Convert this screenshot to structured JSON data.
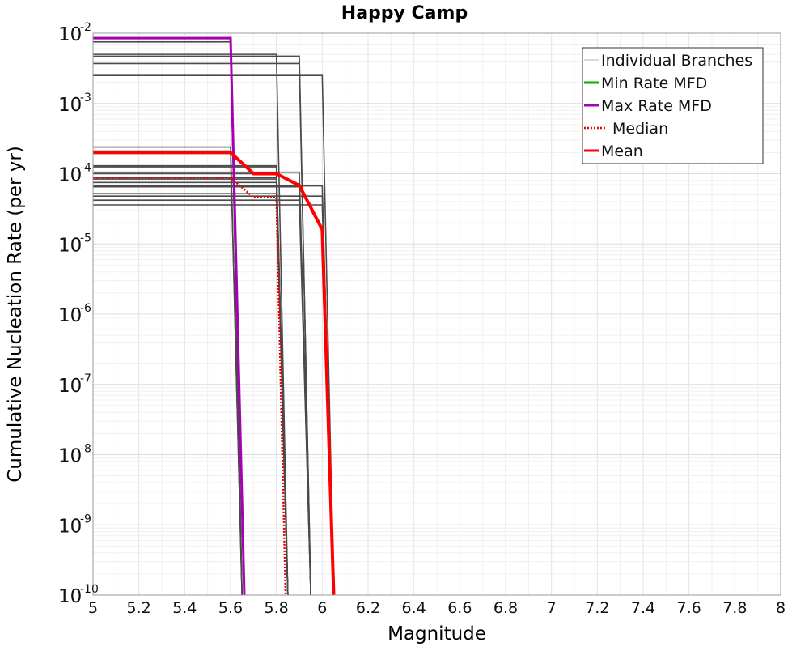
{
  "chart_data": {
    "type": "line",
    "title": "Happy Camp",
    "xlabel": "Magnitude",
    "ylabel": "Cumulative Nucleation Rate (per yr)",
    "xlim": [
      5,
      8
    ],
    "ylim_exp": [
      -10,
      -2
    ],
    "yscale": "log",
    "grid": true,
    "legend_position": "top-right",
    "x_ticks": [
      "5",
      "5.2",
      "5.4",
      "5.6",
      "5.8",
      "6",
      "6.2",
      "6.4",
      "6.6",
      "6.8",
      "7",
      "7.2",
      "7.4",
      "7.6",
      "7.8",
      "8"
    ],
    "y_tick_exponents": [
      -2,
      -3,
      -4,
      -5,
      -6,
      -7,
      -8,
      -9,
      -10
    ],
    "y_tick_base": "10",
    "legend": [
      {
        "label": "Individual Branches",
        "color": "#b4b4b4",
        "style": "solid"
      },
      {
        "label": "Min Rate MFD",
        "color": "#00b000",
        "style": "solid"
      },
      {
        "label": "Max Rate MFD",
        "color": "#a600b4",
        "style": "solid"
      },
      {
        "label": "Median",
        "color": "#ee0000",
        "style": "dotted"
      },
      {
        "label": "Mean",
        "color": "#ff0000",
        "style": "solid"
      }
    ],
    "branch_color": "#4a4a4a",
    "branches": [
      {
        "rate": 0.0085,
        "mmax": 5.6
      },
      {
        "rate": 0.0075,
        "mmax": 5.6
      },
      {
        "rate": 0.005,
        "mmax": 5.8
      },
      {
        "rate": 0.0047,
        "mmax": 5.9
      },
      {
        "rate": 0.0037,
        "mmax": 5.9
      },
      {
        "rate": 0.0025,
        "mmax": 6.0
      },
      {
        "rate": 0.00024,
        "mmax": 5.6
      },
      {
        "rate": 0.00021,
        "mmax": 5.6
      },
      {
        "rate": 0.00013,
        "mmax": 5.8
      },
      {
        "rate": 0.000125,
        "mmax": 5.8
      },
      {
        "rate": 0.000105,
        "mmax": 5.9
      },
      {
        "rate": 0.0001,
        "mmax": 5.8
      },
      {
        "rate": 8.8e-05,
        "mmax": 5.8
      },
      {
        "rate": 8.4e-05,
        "mmax": 5.8
      },
      {
        "rate": 7.5e-05,
        "mmax": 5.8
      },
      {
        "rate": 6.7e-05,
        "mmax": 6.0
      },
      {
        "rate": 6.5e-05,
        "mmax": 5.9
      },
      {
        "rate": 5.2e-05,
        "mmax": 5.8
      },
      {
        "rate": 4.8e-05,
        "mmax": 6.0
      },
      {
        "rate": 4.2e-05,
        "mmax": 5.9
      },
      {
        "rate": 3.6e-05,
        "mmax": 6.0
      }
    ],
    "series": [
      {
        "name": "Max Rate MFD",
        "color": "#a600b4",
        "style": "solid",
        "x": [
          5.0,
          5.6,
          5.66
        ],
        "y": [
          0.0085,
          0.0085,
          1e-10
        ]
      },
      {
        "name": "Median",
        "color": "#ee0000",
        "style": "dotted",
        "x": [
          5.0,
          5.6,
          5.7,
          5.8,
          5.84
        ],
        "y": [
          8.8e-05,
          8.8e-05,
          4.6e-05,
          4.6e-05,
          1e-10
        ]
      },
      {
        "name": "Mean",
        "color": "#ff0000",
        "style": "solid",
        "x": [
          5.0,
          5.6,
          5.7,
          5.8,
          5.9,
          6.0,
          6.05
        ],
        "y": [
          0.0002,
          0.0002,
          0.0001,
          0.0001,
          6.8e-05,
          1.6e-05,
          1e-10
        ]
      }
    ]
  }
}
